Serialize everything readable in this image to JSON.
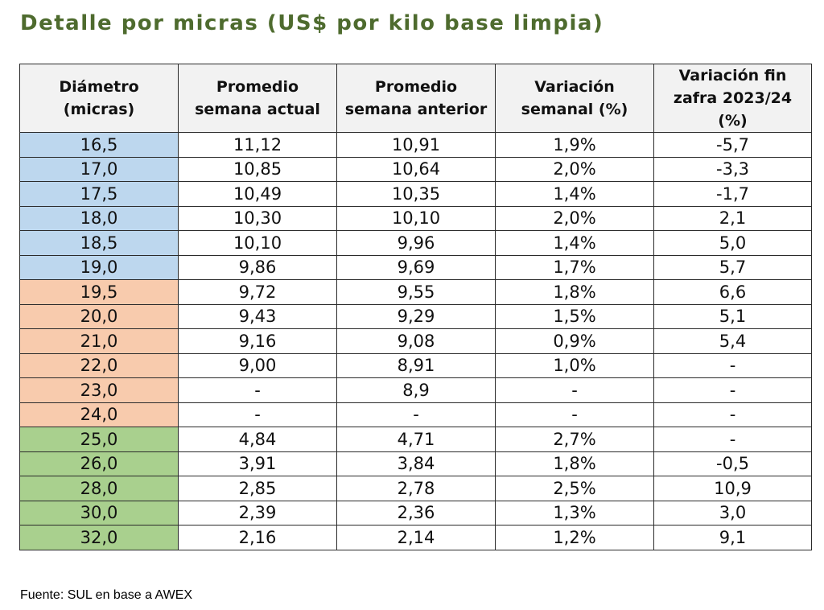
{
  "title": "Detalle por micras (US$ por kilo base limpia)",
  "source": "Fuente: SUL en base a AWEX",
  "colors": {
    "title": "#4e6b2e",
    "header_bg": "#f2f2f2",
    "group_blue": "#bdd7ee",
    "group_orange": "#f8cbad",
    "group_green": "#a9d08e"
  },
  "table": {
    "headers": [
      [
        "Diámetro",
        "(micras)"
      ],
      [
        "Promedio",
        "semana actual"
      ],
      [
        "Promedio",
        "semana anterior"
      ],
      [
        "Variación",
        "semanal (%)"
      ],
      [
        "Variación fin",
        "zafra 2023/24",
        "(%)"
      ]
    ],
    "rows": [
      {
        "group": "blue",
        "cells": [
          "16,5",
          "11,12",
          "10,91",
          "1,9%",
          "-5,7"
        ]
      },
      {
        "group": "blue",
        "cells": [
          "17,0",
          "10,85",
          "10,64",
          "2,0%",
          "-3,3"
        ]
      },
      {
        "group": "blue",
        "cells": [
          "17,5",
          "10,49",
          "10,35",
          "1,4%",
          "-1,7"
        ]
      },
      {
        "group": "blue",
        "cells": [
          "18,0",
          "10,30",
          "10,10",
          "2,0%",
          "2,1"
        ]
      },
      {
        "group": "blue",
        "cells": [
          "18,5",
          "10,10",
          "9,96",
          "1,4%",
          "5,0"
        ]
      },
      {
        "group": "blue",
        "cells": [
          "19,0",
          "9,86",
          "9,69",
          "1,7%",
          "5,7"
        ]
      },
      {
        "group": "orange",
        "cells": [
          "19,5",
          "9,72",
          "9,55",
          "1,8%",
          "6,6"
        ]
      },
      {
        "group": "orange",
        "cells": [
          "20,0",
          "9,43",
          "9,29",
          "1,5%",
          "5,1"
        ]
      },
      {
        "group": "orange",
        "cells": [
          "21,0",
          "9,16",
          "9,08",
          "0,9%",
          "5,4"
        ]
      },
      {
        "group": "orange",
        "cells": [
          "22,0",
          "9,00",
          "8,91",
          "1,0%",
          "-"
        ]
      },
      {
        "group": "orange",
        "cells": [
          "23,0",
          "-",
          "8,9",
          "-",
          "-"
        ]
      },
      {
        "group": "orange",
        "cells": [
          "24,0",
          "-",
          "-",
          "-",
          "-"
        ]
      },
      {
        "group": "green",
        "cells": [
          "25,0",
          "4,84",
          "4,71",
          "2,7%",
          "-"
        ]
      },
      {
        "group": "green",
        "cells": [
          "26,0",
          "3,91",
          "3,84",
          "1,8%",
          "-0,5"
        ]
      },
      {
        "group": "green",
        "cells": [
          "28,0",
          "2,85",
          "2,78",
          "2,5%",
          "10,9"
        ]
      },
      {
        "group": "green",
        "cells": [
          "30,0",
          "2,39",
          "2,36",
          "1,3%",
          "3,0"
        ]
      },
      {
        "group": "green",
        "cells": [
          "32,0",
          "2,16",
          "2,14",
          "1,2%",
          "9,1"
        ]
      }
    ]
  }
}
